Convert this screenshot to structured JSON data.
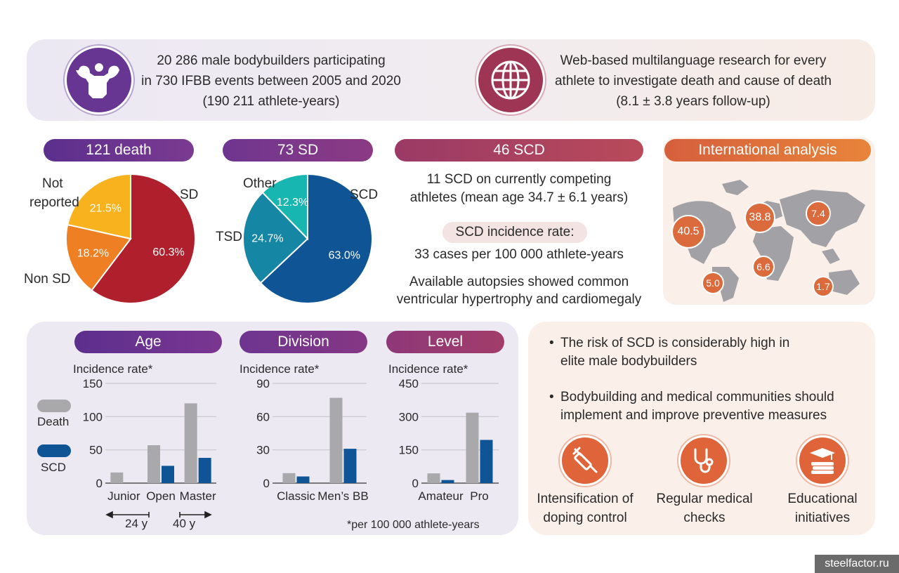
{
  "top": {
    "study_lines": [
      "20 286 male bodybuilders participating",
      "in 730 IFBB events between 2005 and 2020",
      "(190 211 athlete-years)"
    ],
    "research_lines": [
      "Web-based multilanguage research for every",
      "athlete to investigate death and cause of death",
      "(8.1 ± 3.8 years follow-up)"
    ]
  },
  "pills": {
    "death": "121 death",
    "sd": "73 SD",
    "scd": "46 SCD",
    "international": "International analysis",
    "age": "Age",
    "division": "Division",
    "level": "Level"
  },
  "pie_death": {
    "labels": {
      "not_reported_1": "Not",
      "not_reported_2": "reported",
      "sd": "SD",
      "non_sd": "Non SD"
    },
    "slices": [
      {
        "name": "SD",
        "value": 60.3,
        "label": "60.3%",
        "color": "#b0202c"
      },
      {
        "name": "Non SD",
        "value": 18.2,
        "label": "18.2%",
        "color": "#ee7f22"
      },
      {
        "name": "Not reported",
        "value": 21.5,
        "label": "21.5%",
        "color": "#f7b21e"
      }
    ]
  },
  "pie_sd": {
    "labels": {
      "other": "Other",
      "scd": "SCD",
      "tsd": "TSD"
    },
    "slices": [
      {
        "name": "SCD",
        "value": 63.0,
        "label": "63.0%",
        "color": "#0f5596"
      },
      {
        "name": "TSD",
        "value": 24.7,
        "label": "24.7%",
        "color": "#1686a5"
      },
      {
        "name": "Other",
        "value": 12.3,
        "label": "12.3%",
        "color": "#18b6b0"
      }
    ]
  },
  "scd_info": {
    "line1": "11 SCD on currently competing",
    "line2": "athletes (mean age 34.7 ± 6.1 years)",
    "incidence_label": "SCD incidence rate:",
    "incidence_value": "33 cases per 100 000 athlete-years",
    "autopsy_line1": "Available autopsies showed common",
    "autopsy_line2": "ventricular hypertrophy and cardiomegaly"
  },
  "map_values": [
    "40.5",
    "38.8",
    "7.4",
    "6.6",
    "5.0",
    "1.7"
  ],
  "legend": {
    "death": "Death",
    "scd": "SCD",
    "death_color": "#a9a9ab",
    "scd_color": "#0f5596"
  },
  "footnote": "*per 100 000 athlete-years",
  "age_notes": {
    "left": "24 y",
    "right": "40 y"
  },
  "chart_data": [
    {
      "type": "bar",
      "title": "Age",
      "ylabel": "Incidence rate*",
      "ylim": [
        0,
        150
      ],
      "yticks": [
        "0",
        "50",
        "100",
        "150"
      ],
      "categories": [
        "Junior",
        "Open",
        "Master"
      ],
      "series": [
        {
          "name": "Death",
          "values": [
            16,
            57,
            120
          ]
        },
        {
          "name": "SCD",
          "values": [
            0,
            26,
            38
          ]
        }
      ]
    },
    {
      "type": "bar",
      "title": "Division",
      "ylabel": "Incidence rate*",
      "ylim": [
        0,
        90
      ],
      "yticks": [
        "0",
        "30",
        "60",
        "90"
      ],
      "categories": [
        "Classic",
        "Men’s BB"
      ],
      "series": [
        {
          "name": "Death",
          "values": [
            9,
            77
          ]
        },
        {
          "name": "SCD",
          "values": [
            6,
            31
          ]
        }
      ]
    },
    {
      "type": "bar",
      "title": "Level",
      "ylabel": "Incidence rate*",
      "ylim": [
        0,
        450
      ],
      "yticks": [
        "0",
        "150",
        "300",
        "450"
      ],
      "categories": [
        "Amateur",
        "Pro"
      ],
      "series": [
        {
          "name": "Death",
          "values": [
            44,
            318
          ]
        },
        {
          "name": "SCD",
          "values": [
            14,
            195
          ]
        }
      ]
    }
  ],
  "conclusions": {
    "bullet1_line1": "The risk of SCD is considerably high in",
    "bullet1_line2": "elite male bodybuilders",
    "bullet2_line1": "Bodybuilding and medical communities should",
    "bullet2_line2": "implement and improve preventive measures"
  },
  "actions": [
    {
      "line1": "Intensification of",
      "line2": "doping control",
      "icon": "syringe-icon"
    },
    {
      "line1": "Regular medical",
      "line2": "checks",
      "icon": "stethoscope-icon"
    },
    {
      "line1": "Educational",
      "line2": "initiatives",
      "icon": "books-icon"
    }
  ],
  "watermark": "steelfactor.ru"
}
